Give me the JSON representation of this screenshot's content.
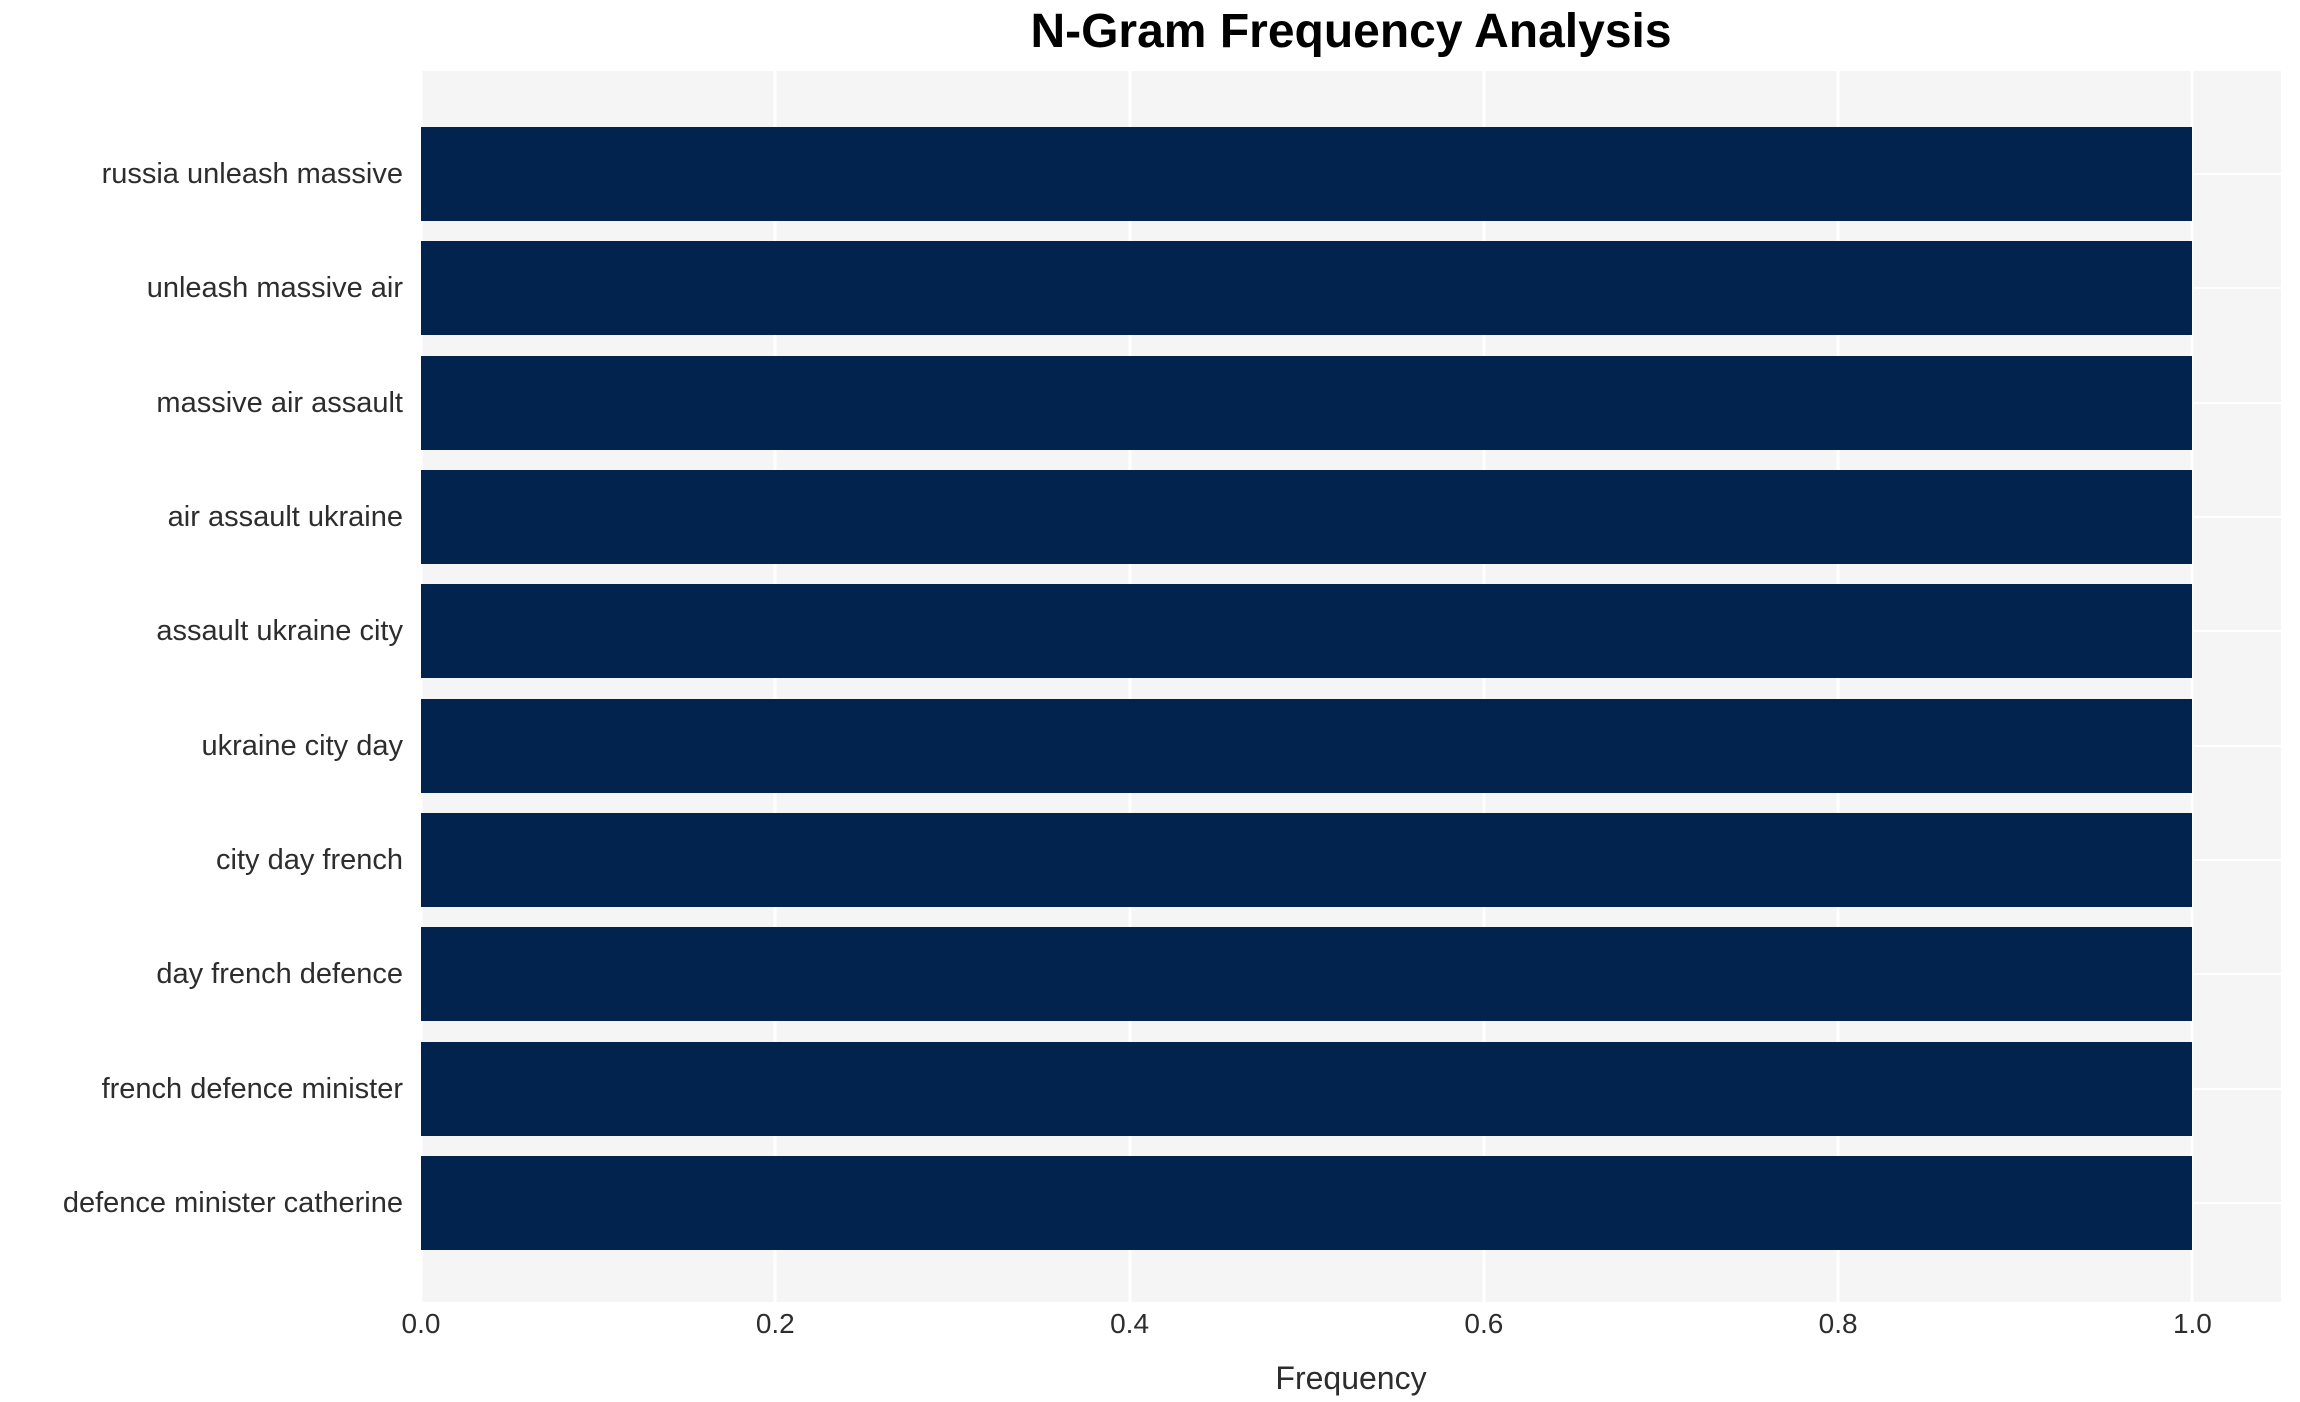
{
  "title": "N-Gram Frequency Analysis",
  "chart_data": {
    "type": "bar",
    "orientation": "horizontal",
    "title": "N-Gram Frequency Analysis",
    "categories": [
      "russia unleash massive",
      "unleash massive air",
      "massive air assault",
      "air assault ukraine",
      "assault ukraine city",
      "ukraine city day",
      "city day french",
      "day french defence",
      "french defence minister",
      "defence minister catherine"
    ],
    "values": [
      1.0,
      1.0,
      1.0,
      1.0,
      1.0,
      1.0,
      1.0,
      1.0,
      1.0,
      1.0
    ],
    "xlabel": "Frequency",
    "ylabel": "",
    "xlim": [
      0,
      1.05
    ],
    "xticks": [
      0.0,
      0.2,
      0.4,
      0.6,
      0.8,
      1.0
    ],
    "xtick_labels": [
      "0.0",
      "0.2",
      "0.4",
      "0.6",
      "0.8",
      "1.0"
    ],
    "grid": true,
    "legend": false,
    "bar_color": "#02234d",
    "plot_background": "#f5f5f5",
    "grid_color": "#ffffff"
  }
}
